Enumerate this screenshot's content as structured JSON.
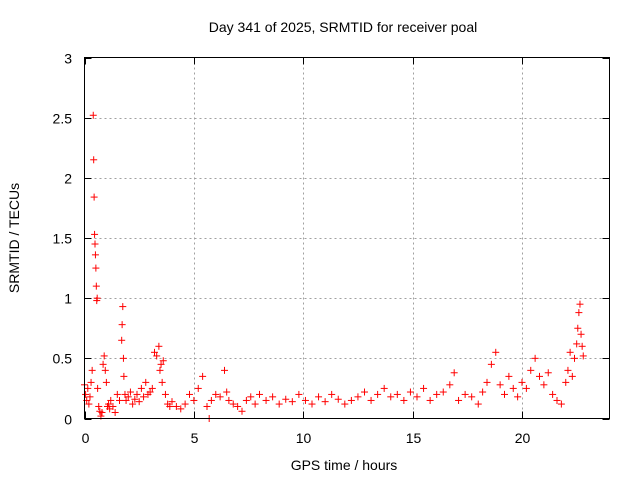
{
  "chart_data": {
    "type": "scatter",
    "title": "Day 341 of 2025, SRMTID for receiver poal",
    "xlabel": "GPS time / hours",
    "ylabel": "SRMTID / TECUs",
    "xlim": [
      0,
      24
    ],
    "ylim": [
      0,
      3
    ],
    "xticks": [
      0,
      5,
      10,
      15,
      20
    ],
    "xtick_labels": [
      "0",
      "5",
      "10",
      "15",
      "20"
    ],
    "yticks": [
      0,
      0.5,
      1,
      1.5,
      2,
      2.5,
      3
    ],
    "ytick_labels": [
      "0",
      "0.5",
      "1",
      "1.5",
      "2",
      "2.5",
      "3"
    ],
    "grid": true,
    "marker": "+",
    "color": "#ff0000",
    "series": [
      {
        "name": "SRMTID",
        "x": [
          0.0,
          0.05,
          0.1,
          0.15,
          0.2,
          0.25,
          0.3,
          0.35,
          0.4,
          0.42,
          0.44,
          0.46,
          0.48,
          0.5,
          0.52,
          0.54,
          0.56,
          0.58,
          0.6,
          0.65,
          0.7,
          0.75,
          0.8,
          0.85,
          0.9,
          0.95,
          1.0,
          1.05,
          1.1,
          1.15,
          1.2,
          1.3,
          1.4,
          1.5,
          1.6,
          1.7,
          1.72,
          1.75,
          1.78,
          1.8,
          1.85,
          1.9,
          2.0,
          2.1,
          2.2,
          2.3,
          2.4,
          2.5,
          2.6,
          2.7,
          2.8,
          2.9,
          3.0,
          3.1,
          3.2,
          3.3,
          3.4,
          3.45,
          3.5,
          3.55,
          3.6,
          3.7,
          3.8,
          3.9,
          4.0,
          4.2,
          4.4,
          4.6,
          4.8,
          5.0,
          5.2,
          5.4,
          5.6,
          5.7,
          5.8,
          6.0,
          6.2,
          6.4,
          6.5,
          6.6,
          6.8,
          7.0,
          7.2,
          7.4,
          7.6,
          7.8,
          8.0,
          8.3,
          8.6,
          8.9,
          9.2,
          9.5,
          9.8,
          10.1,
          10.4,
          10.7,
          11.0,
          11.3,
          11.6,
          11.9,
          12.2,
          12.5,
          12.8,
          13.1,
          13.4,
          13.7,
          14.0,
          14.3,
          14.6,
          14.9,
          15.2,
          15.5,
          15.8,
          16.1,
          16.4,
          16.7,
          16.9,
          17.1,
          17.4,
          17.7,
          18.0,
          18.2,
          18.4,
          18.6,
          18.8,
          19.0,
          19.2,
          19.4,
          19.6,
          19.8,
          20.0,
          20.2,
          20.4,
          20.6,
          20.8,
          21.0,
          21.2,
          21.4,
          21.6,
          21.8,
          22.0,
          22.1,
          22.2,
          22.3,
          22.4,
          22.5,
          22.55,
          22.6,
          22.65,
          22.7,
          22.75,
          22.8
        ],
        "values": [
          0.28,
          0.2,
          0.15,
          0.25,
          0.12,
          0.18,
          0.3,
          0.4,
          2.52,
          2.15,
          1.84,
          1.53,
          1.45,
          1.36,
          1.25,
          1.1,
          0.98,
          1.0,
          0.25,
          0.1,
          0.06,
          0.02,
          0.05,
          0.45,
          0.52,
          0.4,
          0.3,
          0.1,
          0.12,
          0.08,
          0.15,
          0.1,
          0.05,
          0.2,
          0.15,
          0.65,
          0.78,
          0.93,
          0.5,
          0.35,
          0.2,
          0.15,
          0.18,
          0.22,
          0.12,
          0.16,
          0.2,
          0.14,
          0.25,
          0.18,
          0.3,
          0.2,
          0.22,
          0.25,
          0.55,
          0.52,
          0.6,
          0.4,
          0.45,
          0.3,
          0.48,
          0.2,
          0.12,
          0.1,
          0.14,
          0.1,
          0.08,
          0.12,
          0.2,
          0.15,
          0.25,
          0.35,
          0.1,
          0.0,
          0.15,
          0.2,
          0.18,
          0.4,
          0.22,
          0.15,
          0.12,
          0.1,
          0.06,
          0.15,
          0.18,
          0.12,
          0.2,
          0.15,
          0.18,
          0.12,
          0.16,
          0.14,
          0.2,
          0.15,
          0.12,
          0.18,
          0.14,
          0.2,
          0.16,
          0.12,
          0.15,
          0.18,
          0.22,
          0.15,
          0.2,
          0.25,
          0.18,
          0.2,
          0.15,
          0.22,
          0.18,
          0.25,
          0.15,
          0.2,
          0.22,
          0.28,
          0.38,
          0.15,
          0.2,
          0.18,
          0.12,
          0.22,
          0.3,
          0.45,
          0.55,
          0.28,
          0.2,
          0.35,
          0.25,
          0.18,
          0.3,
          0.25,
          0.4,
          0.5,
          0.35,
          0.28,
          0.38,
          0.2,
          0.15,
          0.12,
          0.3,
          0.4,
          0.55,
          0.35,
          0.5,
          0.62,
          0.75,
          0.88,
          0.95,
          0.7,
          0.6,
          0.52
        ]
      }
    ]
  }
}
